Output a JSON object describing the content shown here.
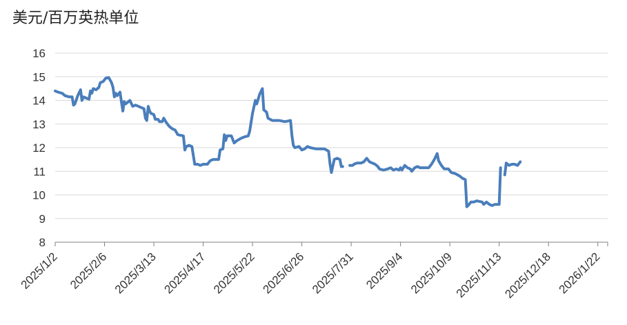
{
  "chart_data": {
    "type": "line",
    "title": "",
    "unit_label": "美元/百万英热单位",
    "xlabel": "",
    "ylabel": "",
    "ylim": [
      8,
      16
    ],
    "yticks": [
      8,
      9,
      10,
      11,
      12,
      13,
      14,
      15,
      16
    ],
    "xlim": [
      "2025-01-02",
      "2026-01-29"
    ],
    "xticks": [
      "2025/1/2",
      "2025/2/6",
      "2025/3/13",
      "2025/4/17",
      "2025/5/22",
      "2025/6/26",
      "2025/7/31",
      "2025/9/4",
      "2025/10/9",
      "2025/11/13",
      "2025/12/18",
      "2026/1/22"
    ],
    "grid": "horizontal",
    "line_color": "#4a7ebb",
    "gridline_color": "#d9d9d9",
    "series": [
      {
        "name": "",
        "segments": [
          [
            [
              "2025-01-02",
              14.4
            ],
            [
              "2025-01-04",
              14.35
            ],
            [
              "2025-01-07",
              14.3
            ],
            [
              "2025-01-09",
              14.2
            ],
            [
              "2025-01-12",
              14.15
            ],
            [
              "2025-01-14",
              14.15
            ],
            [
              "2025-01-15",
              13.8
            ],
            [
              "2025-01-16",
              13.85
            ],
            [
              "2025-01-18",
              14.2
            ],
            [
              "2025-01-20",
              14.45
            ],
            [
              "2025-01-21",
              14.0
            ],
            [
              "2025-01-22",
              14.15
            ],
            [
              "2025-01-24",
              14.1
            ],
            [
              "2025-01-26",
              14.05
            ],
            [
              "2025-01-27",
              14.4
            ],
            [
              "2025-01-28",
              14.3
            ],
            [
              "2025-01-29",
              14.5
            ],
            [
              "2025-01-31",
              14.45
            ],
            [
              "2025-02-02",
              14.55
            ],
            [
              "2025-02-03",
              14.75
            ],
            [
              "2025-02-05",
              14.8
            ],
            [
              "2025-02-07",
              14.95
            ],
            [
              "2025-02-09",
              14.97
            ],
            [
              "2025-02-11",
              14.75
            ],
            [
              "2025-02-12",
              14.55
            ],
            [
              "2025-02-13",
              14.15
            ],
            [
              "2025-02-14",
              14.3
            ],
            [
              "2025-02-15",
              14.2
            ],
            [
              "2025-02-17",
              14.35
            ],
            [
              "2025-02-18",
              13.95
            ],
            [
              "2025-02-19",
              13.55
            ],
            [
              "2025-02-20",
              13.95
            ],
            [
              "2025-02-21",
              13.85
            ],
            [
              "2025-02-23",
              13.95
            ],
            [
              "2025-02-24",
              14.0
            ],
            [
              "2025-02-26",
              13.75
            ],
            [
              "2025-02-28",
              13.8
            ],
            [
              "2025-03-02",
              13.75
            ],
            [
              "2025-03-04",
              13.7
            ],
            [
              "2025-03-06",
              13.65
            ],
            [
              "2025-03-07",
              13.25
            ],
            [
              "2025-03-08",
              13.15
            ],
            [
              "2025-03-09",
              13.75
            ],
            [
              "2025-03-10",
              13.55
            ],
            [
              "2025-03-11",
              13.45
            ],
            [
              "2025-03-13",
              13.4
            ],
            [
              "2025-03-14",
              13.2
            ],
            [
              "2025-03-16",
              13.2
            ],
            [
              "2025-03-17",
              13.1
            ],
            [
              "2025-03-19",
              13.1
            ],
            [
              "2025-03-20",
              13.25
            ],
            [
              "2025-03-22",
              13.05
            ],
            [
              "2025-03-24",
              12.9
            ],
            [
              "2025-03-26",
              12.8
            ],
            [
              "2025-03-28",
              12.75
            ],
            [
              "2025-03-30",
              12.55
            ],
            [
              "2025-04-03",
              12.5
            ],
            [
              "2025-04-04",
              11.9
            ],
            [
              "2025-04-05",
              12.05
            ],
            [
              "2025-04-07",
              12.1
            ],
            [
              "2025-04-09",
              12.05
            ],
            [
              "2025-04-11",
              11.3
            ],
            [
              "2025-04-13",
              11.3
            ],
            [
              "2025-04-15",
              11.25
            ],
            [
              "2025-04-17",
              11.3
            ],
            [
              "2025-04-20",
              11.3
            ],
            [
              "2025-04-22",
              11.45
            ],
            [
              "2025-04-24",
              11.5
            ],
            [
              "2025-04-28",
              11.5
            ],
            [
              "2025-04-29",
              11.9
            ],
            [
              "2025-05-01",
              11.95
            ],
            [
              "2025-05-02",
              12.55
            ],
            [
              "2025-05-03",
              12.3
            ],
            [
              "2025-05-04",
              12.5
            ],
            [
              "2025-05-07",
              12.5
            ],
            [
              "2025-05-09",
              12.2
            ],
            [
              "2025-05-11",
              12.3
            ],
            [
              "2025-05-14",
              12.4
            ],
            [
              "2025-05-16",
              12.45
            ],
            [
              "2025-05-19",
              12.5
            ],
            [
              "2025-05-20",
              12.7
            ],
            [
              "2025-05-22",
              13.45
            ],
            [
              "2025-05-24",
              14.0
            ],
            [
              "2025-05-25",
              13.85
            ],
            [
              "2025-05-27",
              14.25
            ],
            [
              "2025-05-29",
              14.5
            ],
            [
              "2025-05-30",
              13.6
            ],
            [
              "2025-06-01",
              13.5
            ],
            [
              "2025-06-02",
              13.25
            ],
            [
              "2025-06-05",
              13.15
            ],
            [
              "2025-06-07",
              13.15
            ],
            [
              "2025-06-10",
              13.15
            ],
            [
              "2025-06-14",
              13.1
            ],
            [
              "2025-06-18",
              13.15
            ],
            [
              "2025-06-19",
              12.5
            ],
            [
              "2025-06-20",
              12.1
            ],
            [
              "2025-06-21",
              12.0
            ],
            [
              "2025-06-24",
              12.05
            ],
            [
              "2025-06-26",
              11.9
            ],
            [
              "2025-06-28",
              11.95
            ],
            [
              "2025-06-30",
              12.05
            ],
            [
              "2025-07-02",
              12.0
            ],
            [
              "2025-07-06",
              11.95
            ],
            [
              "2025-07-12",
              11.95
            ],
            [
              "2025-07-15",
              11.85
            ],
            [
              "2025-07-16",
              11.3
            ],
            [
              "2025-07-17",
              10.95
            ],
            [
              "2025-07-19",
              11.5
            ],
            [
              "2025-07-21",
              11.55
            ],
            [
              "2025-07-23",
              11.5
            ],
            [
              "2025-07-24",
              11.2
            ],
            [
              "2025-07-25",
              11.2
            ]
          ],
          [
            [
              "2025-07-30",
              11.25
            ],
            [
              "2025-08-01",
              11.25
            ],
            [
              "2025-08-02",
              11.3
            ],
            [
              "2025-08-04",
              11.35
            ],
            [
              "2025-08-07",
              11.35
            ],
            [
              "2025-08-09",
              11.4
            ],
            [
              "2025-08-11",
              11.55
            ],
            [
              "2025-08-13",
              11.4
            ],
            [
              "2025-08-15",
              11.35
            ],
            [
              "2025-08-17",
              11.3
            ],
            [
              "2025-08-19",
              11.2
            ],
            [
              "2025-08-20",
              11.1
            ],
            [
              "2025-08-23",
              11.05
            ],
            [
              "2025-08-26",
              11.1
            ],
            [
              "2025-08-28",
              11.15
            ],
            [
              "2025-08-30",
              11.05
            ],
            [
              "2025-09-01",
              11.1
            ],
            [
              "2025-09-03",
              11.05
            ],
            [
              "2025-09-04",
              11.15
            ],
            [
              "2025-09-05",
              11.05
            ],
            [
              "2025-09-07",
              11.25
            ],
            [
              "2025-09-09",
              11.15
            ],
            [
              "2025-09-11",
              11.1
            ],
            [
              "2025-09-12",
              11.0
            ],
            [
              "2025-09-14",
              11.15
            ],
            [
              "2025-09-16",
              11.2
            ],
            [
              "2025-09-18",
              11.15
            ],
            [
              "2025-09-21",
              11.15
            ],
            [
              "2025-09-24",
              11.15
            ],
            [
              "2025-09-26",
              11.3
            ],
            [
              "2025-09-28",
              11.5
            ],
            [
              "2025-09-30",
              11.75
            ],
            [
              "2025-10-01",
              11.45
            ],
            [
              "2025-10-03",
              11.25
            ],
            [
              "2025-10-05",
              11.1
            ],
            [
              "2025-10-08",
              11.1
            ],
            [
              "2025-10-10",
              10.95
            ],
            [
              "2025-10-13",
              10.9
            ],
            [
              "2025-10-16",
              10.8
            ],
            [
              "2025-10-18",
              10.7
            ],
            [
              "2025-10-20",
              10.65
            ],
            [
              "2025-10-21",
              9.5
            ],
            [
              "2025-10-22",
              9.55
            ],
            [
              "2025-10-24",
              9.7
            ],
            [
              "2025-10-26",
              9.7
            ],
            [
              "2025-10-28",
              9.75
            ],
            [
              "2025-11-01",
              9.7
            ],
            [
              "2025-11-02",
              9.6
            ],
            [
              "2025-11-04",
              9.7
            ],
            [
              "2025-11-06",
              9.6
            ],
            [
              "2025-11-08",
              9.55
            ],
            [
              "2025-11-10",
              9.6
            ],
            [
              "2025-11-13",
              9.6
            ],
            [
              "2025-11-14",
              11.15
            ]
          ],
          [
            [
              "2025-11-17",
              10.85
            ],
            [
              "2025-11-18",
              11.35
            ],
            [
              "2025-11-20",
              11.25
            ],
            [
              "2025-11-22",
              11.3
            ],
            [
              "2025-11-24",
              11.3
            ],
            [
              "2025-11-26",
              11.25
            ],
            [
              "2025-11-28",
              11.4
            ]
          ]
        ]
      }
    ]
  }
}
